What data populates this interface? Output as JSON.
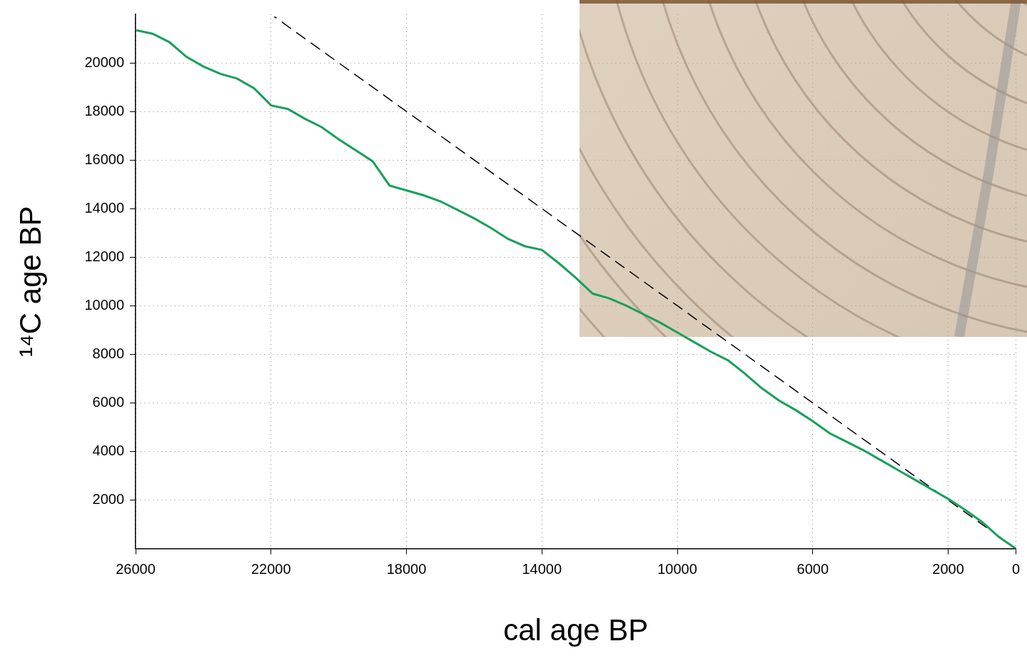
{
  "chart_data": {
    "type": "line",
    "x_label": "cal age BP",
    "y_label": "¹⁴C age BP",
    "xlim": [
      26000,
      0
    ],
    "ylim": [
      0,
      22000
    ],
    "xticks": [
      26000,
      22000,
      18000,
      14000,
      10000,
      6000,
      2000,
      0
    ],
    "yticks": [
      2000,
      4000,
      6000,
      8000,
      10000,
      12000,
      14000,
      16000,
      18000,
      20000
    ],
    "grid": true,
    "series": [
      {
        "color": "#17a05a",
        "marker": "none",
        "line_style": "solid",
        "x": [
          0,
          500,
          1000,
          1500,
          2000,
          2500,
          3000,
          3500,
          4000,
          4500,
          5000,
          5500,
          6000,
          6500,
          7000,
          7500,
          8000,
          8500,
          9000,
          9500,
          10000,
          10500,
          11000,
          11500,
          12000,
          12500,
          13000,
          13500,
          14000,
          14500,
          15000,
          15500,
          16000,
          16500,
          17000,
          17500,
          18000,
          18500,
          19000,
          19500,
          20000,
          20500,
          21000,
          21500,
          22000,
          22500,
          23000,
          23500,
          24000,
          24500,
          25000,
          25500,
          26000
        ],
        "values": [
          0,
          480,
          1100,
          1600,
          2050,
          2450,
          2850,
          3250,
          3650,
          4050,
          4400,
          4750,
          5250,
          5700,
          6100,
          6600,
          7200,
          7750,
          8100,
          8500,
          8900,
          9300,
          9650,
          10000,
          10300,
          10500,
          11150,
          11750,
          12300,
          12450,
          12750,
          13200,
          13600,
          13950,
          14300,
          14550,
          14750,
          14950,
          15950,
          16400,
          16850,
          17350,
          17700,
          18100,
          18250,
          18950,
          19350,
          19550,
          19850,
          20250,
          20850,
          21200,
          21350
        ]
      },
      {
        "color": "#000000",
        "marker": "none",
        "line_style": "dashed",
        "x": [
          0,
          21900
        ],
        "values": [
          0,
          21900
        ]
      }
    ]
  }
}
